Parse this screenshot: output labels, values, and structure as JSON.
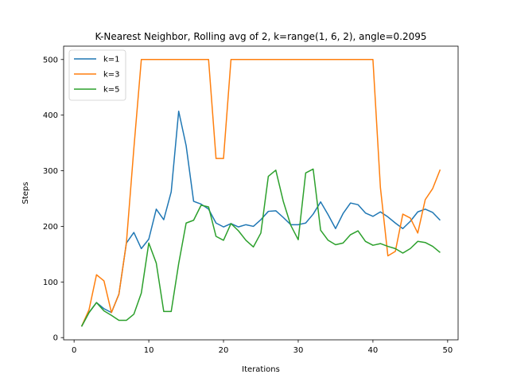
{
  "chart_data": {
    "type": "line",
    "title": "K-Nearest Neighbor, Rolling avg of 2, k=range(1, 6, 2), angle=0.2095",
    "xlabel": "Iterations",
    "ylabel": "Steps",
    "xlim": [
      -1.4,
      51.4
    ],
    "ylim": [
      -4,
      524
    ],
    "xticks": [
      0,
      10,
      20,
      30,
      40,
      50
    ],
    "yticks": [
      0,
      100,
      200,
      300,
      400,
      500
    ],
    "grid": false,
    "legend_position": "top-left",
    "x": [
      1,
      2,
      3,
      4,
      5,
      6,
      7,
      8,
      9,
      10,
      11,
      12,
      13,
      14,
      15,
      16,
      17,
      18,
      19,
      20,
      21,
      22,
      23,
      24,
      25,
      26,
      27,
      28,
      29,
      30,
      31,
      32,
      33,
      34,
      35,
      36,
      37,
      38,
      39,
      40,
      41,
      42,
      43,
      44,
      45,
      46,
      47,
      48,
      49
    ],
    "series": [
      {
        "name": "k=1",
        "color": "#1f77b4",
        "values": [
          20,
          45,
          63,
          52,
          45,
          78,
          170,
          189,
          160,
          177,
          231,
          212,
          262,
          407,
          345,
          245,
          240,
          231,
          206,
          199,
          205,
          199,
          203,
          200,
          212,
          227,
          228,
          216,
          203,
          203,
          206,
          222,
          244,
          221,
          196,
          223,
          242,
          239,
          224,
          218,
          226,
          217,
          206,
          196,
          209,
          226,
          231,
          225,
          211
        ]
      },
      {
        "name": "k=3",
        "color": "#ff7f0e",
        "values": [
          20,
          50,
          113,
          102,
          45,
          78,
          170,
          340,
          500,
          500,
          500,
          500,
          500,
          500,
          500,
          500,
          500,
          500,
          322,
          322,
          500,
          500,
          500,
          500,
          500,
          500,
          500,
          500,
          500,
          500,
          500,
          500,
          500,
          500,
          500,
          500,
          500,
          500,
          500,
          500,
          270,
          147,
          155,
          222,
          215,
          188,
          248,
          268,
          302
        ]
      },
      {
        "name": "k=5",
        "color": "#2ca02c",
        "values": [
          20,
          45,
          63,
          48,
          40,
          31,
          31,
          42,
          80,
          170,
          134,
          47,
          47,
          133,
          206,
          211,
          238,
          235,
          182,
          175,
          205,
          192,
          175,
          163,
          188,
          290,
          301,
          245,
          202,
          176,
          296,
          303,
          193,
          175,
          167,
          170,
          185,
          192,
          173,
          166,
          169,
          164,
          160,
          152,
          160,
          173,
          171,
          164,
          153
        ]
      }
    ]
  }
}
